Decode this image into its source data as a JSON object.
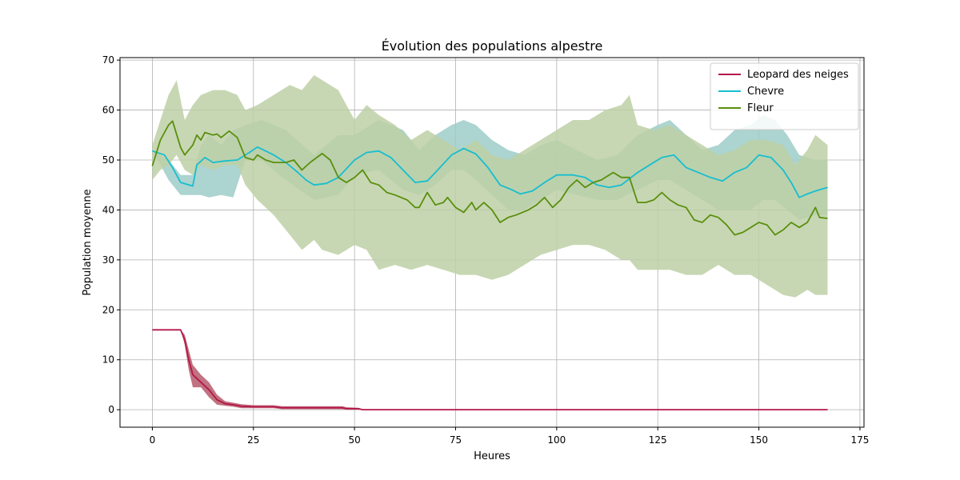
{
  "chart_data": {
    "type": "line",
    "title": "Évolution des populations alpestre",
    "xlabel": "Heures",
    "ylabel": "Population moyenne",
    "xlim": [
      -8,
      176
    ],
    "ylim": [
      -3.5,
      70.5
    ],
    "xticks": [
      0,
      25,
      50,
      75,
      100,
      125,
      150,
      175
    ],
    "yticks": [
      0,
      10,
      20,
      30,
      40,
      50,
      60,
      70
    ],
    "grid": true,
    "legend_position": "top-right",
    "series": [
      {
        "name": "Leopard des neiges",
        "color": "#b5174a",
        "band_color": "#b55a6a",
        "points": [
          [
            0,
            16
          ],
          [
            7,
            16
          ],
          [
            8,
            14
          ],
          [
            9,
            10
          ],
          [
            10,
            7
          ],
          [
            12,
            5.5
          ],
          [
            14,
            4
          ],
          [
            16,
            2
          ],
          [
            18,
            1.2
          ],
          [
            20,
            1
          ],
          [
            22,
            0.7
          ],
          [
            25,
            0.6
          ],
          [
            30,
            0.6
          ],
          [
            32,
            0.4
          ],
          [
            40,
            0.4
          ],
          [
            47,
            0.4
          ],
          [
            48,
            0.2
          ],
          [
            51,
            0.2
          ],
          [
            52,
            0
          ],
          [
            167,
            0
          ]
        ],
        "band": [
          [
            0,
            16,
            16
          ],
          [
            7,
            16,
            16
          ],
          [
            8,
            13,
            15
          ],
          [
            9,
            8,
            12
          ],
          [
            10,
            4.5,
            9
          ],
          [
            12,
            4.5,
            7
          ],
          [
            14,
            2.5,
            5.5
          ],
          [
            16,
            1,
            3
          ],
          [
            18,
            0.8,
            1.7
          ],
          [
            20,
            0.6,
            1.4
          ],
          [
            22,
            0.3,
            1.1
          ],
          [
            25,
            0.3,
            0.9
          ],
          [
            30,
            0.3,
            0.9
          ],
          [
            32,
            0.1,
            0.7
          ],
          [
            40,
            0.1,
            0.7
          ],
          [
            47,
            0.1,
            0.7
          ],
          [
            48,
            0,
            0.5
          ],
          [
            51,
            0,
            0.4
          ],
          [
            52,
            0,
            0
          ],
          [
            167,
            0,
            0
          ]
        ]
      },
      {
        "name": "Chevre",
        "color": "#17becf",
        "band_color": "#9ecdc8",
        "points": [
          [
            0,
            51.8
          ],
          [
            3,
            51
          ],
          [
            5,
            48.5
          ],
          [
            7,
            45.5
          ],
          [
            10,
            44.8
          ],
          [
            11,
            49
          ],
          [
            13,
            50.5
          ],
          [
            15,
            49.5
          ],
          [
            18,
            49.8
          ],
          [
            21,
            50
          ],
          [
            24,
            51.5
          ],
          [
            26,
            52.6
          ],
          [
            28,
            51.8
          ],
          [
            30,
            51
          ],
          [
            33,
            49.5
          ],
          [
            36,
            47.5
          ],
          [
            38,
            46
          ],
          [
            40,
            45
          ],
          [
            43,
            45.3
          ],
          [
            46,
            46.5
          ],
          [
            50,
            50
          ],
          [
            53,
            51.5
          ],
          [
            56,
            51.8
          ],
          [
            59,
            50.5
          ],
          [
            62,
            48
          ],
          [
            65,
            45.5
          ],
          [
            68,
            45.8
          ],
          [
            70,
            47.5
          ],
          [
            74,
            51
          ],
          [
            77,
            52.3
          ],
          [
            80,
            51.2
          ],
          [
            83,
            48.5
          ],
          [
            86,
            45
          ],
          [
            89,
            44
          ],
          [
            91,
            43.2
          ],
          [
            94,
            43.8
          ],
          [
            97,
            45.5
          ],
          [
            100,
            47
          ],
          [
            104,
            47
          ],
          [
            107,
            46.5
          ],
          [
            110,
            45
          ],
          [
            113,
            44.5
          ],
          [
            116,
            45
          ],
          [
            120,
            47.5
          ],
          [
            123,
            49
          ],
          [
            126,
            50.5
          ],
          [
            129,
            51
          ],
          [
            132,
            48.5
          ],
          [
            135,
            47.5
          ],
          [
            138,
            46.5
          ],
          [
            141,
            45.8
          ],
          [
            144,
            47.5
          ],
          [
            147,
            48.5
          ],
          [
            150,
            51
          ],
          [
            153,
            50.5
          ],
          [
            156,
            48
          ],
          [
            158,
            45.5
          ],
          [
            160,
            42.5
          ],
          [
            162,
            43.2
          ],
          [
            164,
            43.8
          ],
          [
            167,
            44.5
          ]
        ],
        "band": [
          [
            0,
            52,
            52
          ],
          [
            4,
            46,
            50
          ],
          [
            7,
            43,
            47
          ],
          [
            10,
            43,
            47
          ],
          [
            12,
            43,
            53
          ],
          [
            14,
            42.5,
            55
          ],
          [
            17,
            43,
            53
          ],
          [
            20,
            42.5,
            56
          ],
          [
            23,
            50,
            57
          ],
          [
            27,
            50,
            58
          ],
          [
            33,
            46,
            56
          ],
          [
            40,
            42,
            51
          ],
          [
            46,
            43,
            55
          ],
          [
            50,
            47,
            55
          ],
          [
            56,
            48,
            58
          ],
          [
            62,
            44,
            56
          ],
          [
            66,
            43,
            52
          ],
          [
            70,
            45,
            55
          ],
          [
            74,
            48,
            57
          ],
          [
            77,
            48,
            58
          ],
          [
            80,
            46,
            57
          ],
          [
            84,
            43,
            54
          ],
          [
            88,
            40,
            52
          ],
          [
            92,
            40,
            51
          ],
          [
            96,
            42,
            53
          ],
          [
            100,
            44,
            54
          ],
          [
            105,
            43,
            52
          ],
          [
            110,
            42,
            50
          ],
          [
            115,
            42,
            51
          ],
          [
            120,
            44,
            55
          ],
          [
            125,
            46,
            57
          ],
          [
            128,
            46,
            58
          ],
          [
            132,
            44,
            55
          ],
          [
            136,
            42,
            52
          ],
          [
            140,
            40,
            53
          ],
          [
            144,
            40,
            56
          ],
          [
            148,
            40,
            57
          ],
          [
            151,
            42,
            59
          ],
          [
            154,
            42,
            58
          ],
          [
            157,
            40,
            55
          ],
          [
            160,
            38,
            51
          ],
          [
            164,
            39,
            50
          ],
          [
            167,
            39,
            50
          ]
        ]
      },
      {
        "name": "Fleur",
        "color": "#5a8f0e",
        "band_color": "#bdd0a6",
        "points": [
          [
            0,
            48.8
          ],
          [
            2,
            54
          ],
          [
            4,
            57
          ],
          [
            5,
            57.8
          ],
          [
            7,
            52.5
          ],
          [
            8,
            51
          ],
          [
            10,
            53
          ],
          [
            11,
            55
          ],
          [
            12,
            54
          ],
          [
            13,
            55.5
          ],
          [
            15,
            55
          ],
          [
            16,
            55.2
          ],
          [
            17,
            54.5
          ],
          [
            19,
            55.8
          ],
          [
            21,
            54.5
          ],
          [
            23,
            50.5
          ],
          [
            25,
            50
          ],
          [
            26,
            51
          ],
          [
            28,
            50
          ],
          [
            30,
            49.5
          ],
          [
            33,
            49.5
          ],
          [
            35,
            50
          ],
          [
            37,
            48
          ],
          [
            39,
            49.5
          ],
          [
            42,
            51.3
          ],
          [
            44,
            50
          ],
          [
            46,
            46.5
          ],
          [
            48,
            45.5
          ],
          [
            50,
            46.5
          ],
          [
            52,
            48
          ],
          [
            54,
            45.5
          ],
          [
            56,
            45
          ],
          [
            58,
            43.5
          ],
          [
            60,
            43
          ],
          [
            63,
            42
          ],
          [
            65,
            40.5
          ],
          [
            66,
            40.5
          ],
          [
            68,
            43.5
          ],
          [
            70,
            41
          ],
          [
            72,
            41.5
          ],
          [
            73,
            42.5
          ],
          [
            75,
            40.5
          ],
          [
            77,
            39.5
          ],
          [
            79,
            41.5
          ],
          [
            80,
            40
          ],
          [
            82,
            41.5
          ],
          [
            84,
            40
          ],
          [
            86,
            37.5
          ],
          [
            88,
            38.5
          ],
          [
            90,
            39
          ],
          [
            93,
            40
          ],
          [
            95,
            41
          ],
          [
            97,
            42.5
          ],
          [
            99,
            40.5
          ],
          [
            101,
            42
          ],
          [
            103,
            44.5
          ],
          [
            105,
            46
          ],
          [
            107,
            44.5
          ],
          [
            109,
            45.5
          ],
          [
            111,
            46
          ],
          [
            114,
            47.5
          ],
          [
            116,
            46.5
          ],
          [
            118,
            46.5
          ],
          [
            120,
            41.5
          ],
          [
            122,
            41.5
          ],
          [
            124,
            42
          ],
          [
            126,
            43.5
          ],
          [
            128,
            42
          ],
          [
            130,
            41
          ],
          [
            132,
            40.5
          ],
          [
            134,
            38
          ],
          [
            136,
            37.5
          ],
          [
            138,
            39
          ],
          [
            140,
            38.5
          ],
          [
            142,
            37
          ],
          [
            144,
            35
          ],
          [
            146,
            35.5
          ],
          [
            148,
            36.5
          ],
          [
            150,
            37.5
          ],
          [
            152,
            37
          ],
          [
            154,
            35
          ],
          [
            156,
            36
          ],
          [
            158,
            37.5
          ],
          [
            160,
            36.5
          ],
          [
            162,
            37.5
          ],
          [
            164,
            40.5
          ],
          [
            165,
            38.5
          ],
          [
            167,
            38.3
          ]
        ],
        "band": [
          [
            0,
            46,
            53
          ],
          [
            2,
            48,
            58
          ],
          [
            4,
            49,
            63
          ],
          [
            6,
            51,
            66
          ],
          [
            8,
            48,
            58
          ],
          [
            10,
            47,
            61
          ],
          [
            12,
            49,
            63
          ],
          [
            15,
            48,
            64
          ],
          [
            18,
            49,
            64
          ],
          [
            21,
            49,
            63
          ],
          [
            23,
            45,
            60
          ],
          [
            26,
            42,
            61
          ],
          [
            30,
            39,
            63
          ],
          [
            34,
            35,
            65
          ],
          [
            37,
            32,
            64
          ],
          [
            40,
            34,
            67
          ],
          [
            42,
            32,
            66
          ],
          [
            46,
            31,
            64
          ],
          [
            50,
            33,
            58
          ],
          [
            53,
            32,
            61
          ],
          [
            56,
            28,
            59
          ],
          [
            60,
            29,
            57
          ],
          [
            64,
            28,
            54
          ],
          [
            68,
            29,
            56
          ],
          [
            72,
            28,
            54
          ],
          [
            76,
            27,
            52
          ],
          [
            80,
            27,
            54
          ],
          [
            84,
            26,
            51
          ],
          [
            88,
            27,
            50
          ],
          [
            92,
            29,
            52
          ],
          [
            96,
            31,
            54
          ],
          [
            100,
            32,
            56
          ],
          [
            104,
            33,
            58
          ],
          [
            108,
            33,
            58
          ],
          [
            112,
            32,
            60
          ],
          [
            116,
            30,
            61
          ],
          [
            118,
            30,
            63
          ],
          [
            120,
            28,
            57
          ],
          [
            124,
            28,
            56
          ],
          [
            128,
            28,
            57
          ],
          [
            132,
            27,
            55
          ],
          [
            136,
            27,
            53
          ],
          [
            140,
            29,
            51
          ],
          [
            144,
            27,
            52
          ],
          [
            148,
            27,
            54
          ],
          [
            152,
            25,
            54
          ],
          [
            156,
            23,
            53
          ],
          [
            159,
            22.5,
            49
          ],
          [
            162,
            24,
            52
          ],
          [
            164,
            23,
            55
          ],
          [
            167,
            23,
            53
          ]
        ]
      }
    ]
  }
}
